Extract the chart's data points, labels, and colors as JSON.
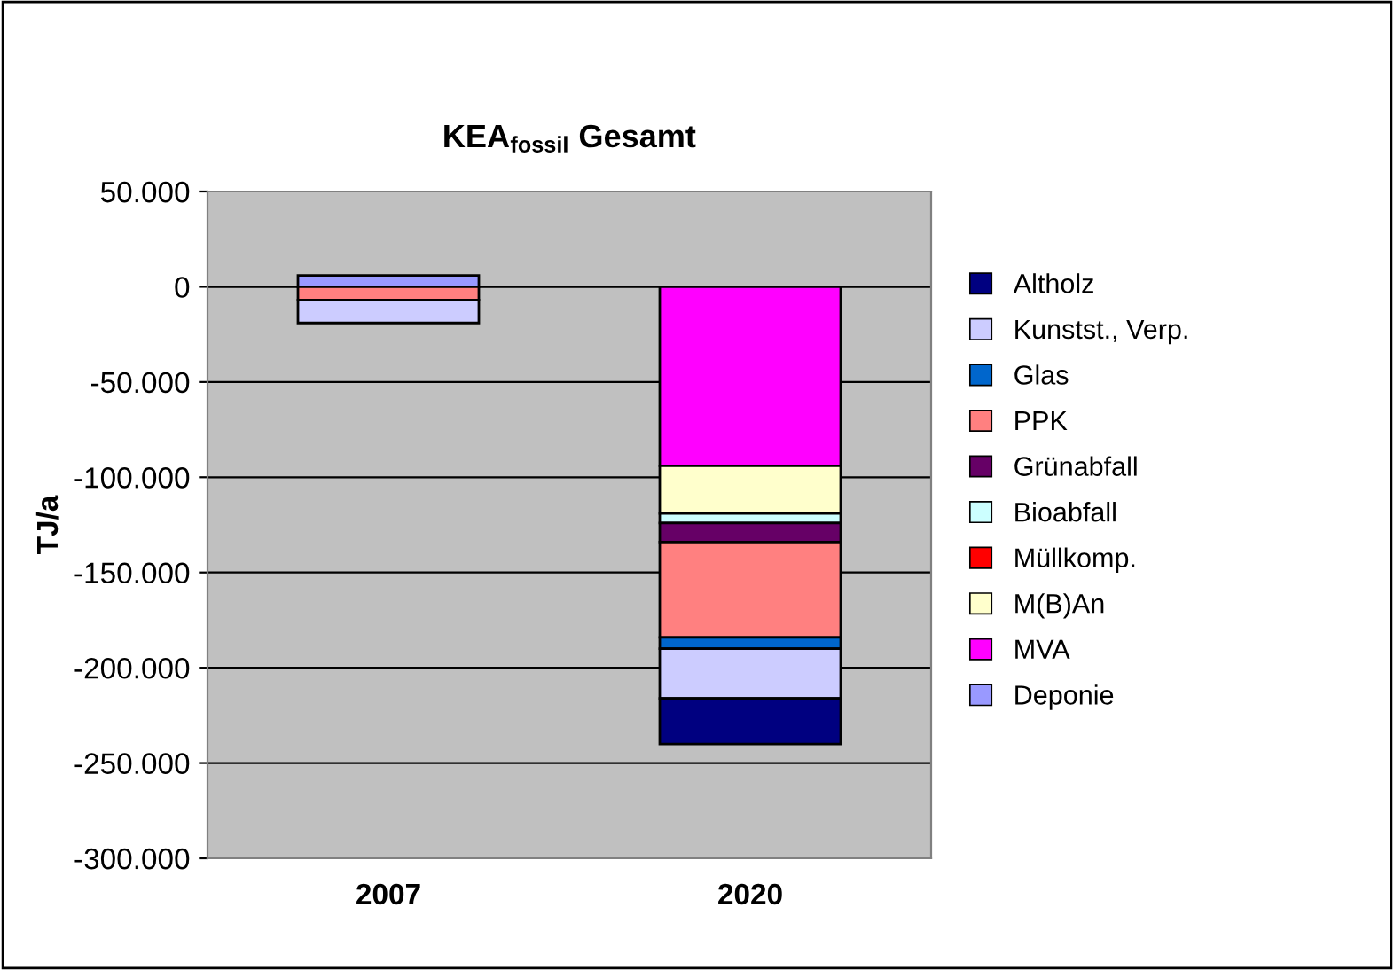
{
  "chart_data": {
    "type": "bar",
    "stacked": true,
    "title": "KEA$_{fossil}$ Gesamt",
    "ylabel": "TJ/a",
    "categories": [
      "2007",
      "2020"
    ],
    "series": [
      {
        "name": "Deponie",
        "color": "#9999ff",
        "values": [
          6000,
          null
        ]
      },
      {
        "name": "MVA",
        "color": "#ff00ff",
        "values": [
          null,
          -94000
        ]
      },
      {
        "name": "M(B)An",
        "color": "#ffffcc",
        "values": [
          null,
          -25000
        ]
      },
      {
        "name": "Müllkomp.",
        "color": "#ff0000",
        "values": [
          null,
          null
        ]
      },
      {
        "name": "Bioabfall",
        "color": "#ccffff",
        "values": [
          null,
          -5000
        ]
      },
      {
        "name": "Grünabfall",
        "color": "#660066",
        "values": [
          null,
          -10000
        ]
      },
      {
        "name": "PPK",
        "color": "#ff8080",
        "values": [
          -7000,
          -50000
        ]
      },
      {
        "name": "Glas",
        "color": "#0066cc",
        "values": [
          null,
          -6000
        ]
      },
      {
        "name": "Kunstst., Verp.",
        "color": "#ccccff",
        "values": [
          -12000,
          -26000
        ]
      },
      {
        "name": "Altholz",
        "color": "#000080",
        "values": [
          null,
          -24000
        ]
      }
    ],
    "ylim": [
      -300000,
      50000
    ],
    "yticks": [
      {
        "value": 50000,
        "label": "50.000"
      },
      {
        "value": 0,
        "label": "0"
      },
      {
        "value": -50000,
        "label": "-50.000"
      },
      {
        "value": -100000,
        "label": "-100.000"
      },
      {
        "value": -150000,
        "label": "-150.000"
      },
      {
        "value": -200000,
        "label": "-200.000"
      },
      {
        "value": -250000,
        "label": "-250.000"
      },
      {
        "value": -300000,
        "label": "-300.000"
      }
    ],
    "grid": "y",
    "legend": "right"
  }
}
